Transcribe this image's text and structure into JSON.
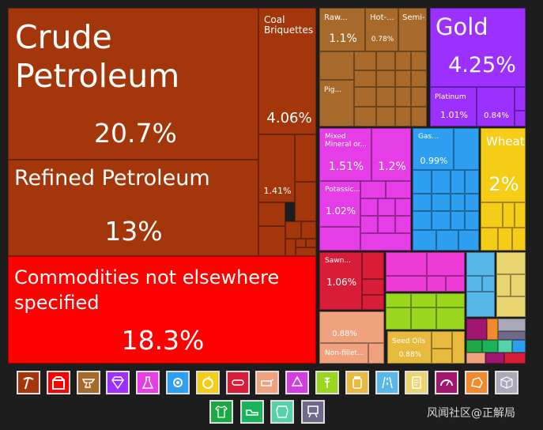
{
  "chart_data": {
    "type": "treemap",
    "tiles": [
      {
        "name": "Crude Petroleum",
        "share": "20.7%",
        "category": "Mineral Products"
      },
      {
        "name": "Refined Petroleum",
        "share": "13%",
        "category": "Mineral Products"
      },
      {
        "name": "Commodities not elsewhere specified",
        "share": "18.3%",
        "category": "Miscellaneous"
      },
      {
        "name": "Coal Briquettes",
        "share": "4.06%",
        "category": "Mineral Products"
      },
      {
        "name": "",
        "share": "1.41%",
        "category": "Mineral Products"
      },
      {
        "name": "Raw...",
        "share": "1.1%",
        "category": "Metals"
      },
      {
        "name": "Hot-...",
        "share": "0.78%",
        "category": "Metals"
      },
      {
        "name": "Semi-...",
        "share": "",
        "category": "Metals"
      },
      {
        "name": "Pig...",
        "share": "",
        "category": "Metals"
      },
      {
        "name": "Gold",
        "share": "4.25%",
        "category": "Precious Metals"
      },
      {
        "name": "Platinum",
        "share": "1.01%",
        "category": "Precious Metals"
      },
      {
        "name": "",
        "share": "0.84%",
        "category": "Precious Metals"
      },
      {
        "name": "Mixed Mineral or...",
        "share": "1.51%",
        "category": "Chemical Products"
      },
      {
        "name": "",
        "share": "1.2%",
        "category": "Chemical Products"
      },
      {
        "name": "Potassic...",
        "share": "1.02%",
        "category": "Chemical Products"
      },
      {
        "name": "Gas...",
        "share": "0.99%",
        "category": "Machines"
      },
      {
        "name": "Wheat",
        "share": "2%",
        "category": "Vegetable Products"
      },
      {
        "name": "Sawn...",
        "share": "1.06%",
        "category": "Wood Products"
      },
      {
        "name": "",
        "share": "0.88%",
        "category": "Animal Products"
      },
      {
        "name": "Non-fillet...",
        "share": "",
        "category": "Animal Products"
      },
      {
        "name": "Seed Oils",
        "share": "0.88%",
        "category": "Animal and Vegetable Bi-Products"
      }
    ]
  },
  "colors": {
    "mineral": "#a3360a",
    "misc": "#ff0000",
    "metals": "#a76a2b",
    "precious": "#9b30ff",
    "chemical": "#e63ee6",
    "machines": "#2e9ef0",
    "vegetable": "#f6cd16",
    "wood": "#d81d38",
    "animal": "#f0a17e",
    "seedoil": "#e7b93c"
  },
  "legend": [
    {
      "icon": "pickaxe-icon",
      "color": "#a3360a"
    },
    {
      "icon": "box-icon",
      "color": "#ff0000"
    },
    {
      "icon": "anvil-icon",
      "color": "#a76a2b"
    },
    {
      "icon": "diamond-icon",
      "color": "#9b30ff"
    },
    {
      "icon": "flask-icon",
      "color": "#e63ee6"
    },
    {
      "icon": "gear-icon",
      "color": "#2e9ef0"
    },
    {
      "icon": "fruit-icon",
      "color": "#f6cd16"
    },
    {
      "icon": "log-icon",
      "color": "#d81d38"
    },
    {
      "icon": "animal-icon",
      "color": "#f0a17e"
    },
    {
      "icon": "recycle-icon",
      "color": "#d23ee0"
    },
    {
      "icon": "wheat-icon",
      "color": "#9ad61e"
    },
    {
      "icon": "jar-icon",
      "color": "#e7b93c"
    },
    {
      "icon": "road-icon",
      "color": "#56b7e8"
    },
    {
      "icon": "document-icon",
      "color": "#e8d570"
    },
    {
      "icon": "gauge-icon",
      "color": "#a0166f"
    },
    {
      "icon": "stone-icon",
      "color": "#f08a2c"
    },
    {
      "icon": "package-icon",
      "color": "#a9a9b9"
    },
    {
      "icon": "shirt-icon",
      "color": "#1ca844"
    },
    {
      "icon": "shoe-icon",
      "color": "#1ab35b"
    },
    {
      "icon": "hide-icon",
      "color": "#55d2a8"
    },
    {
      "icon": "easel-icon",
      "color": "#706a8a"
    }
  ],
  "watermark": "风闻社区@正解局"
}
